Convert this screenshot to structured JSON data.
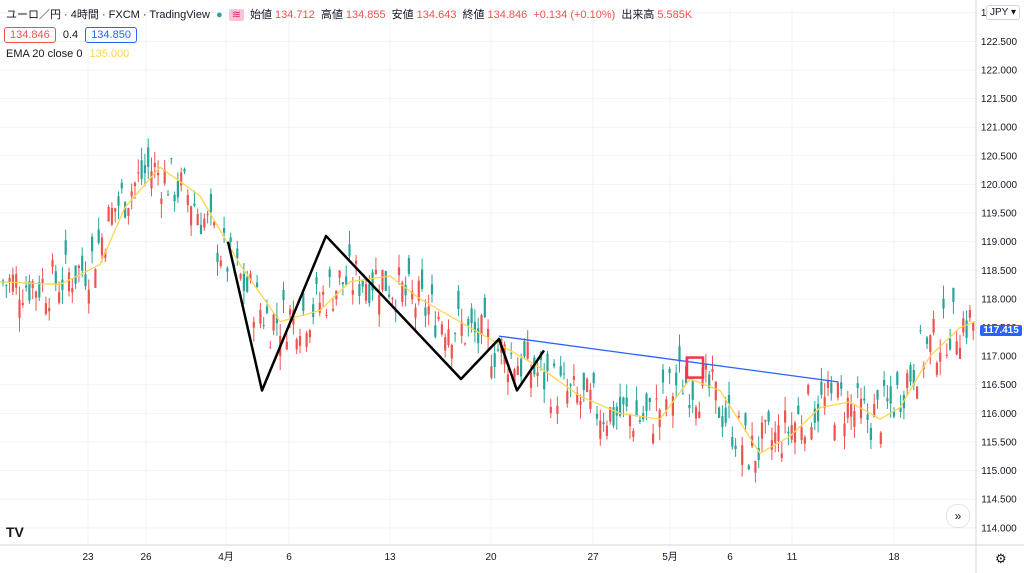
{
  "header": {
    "symbol": "ユーロ／円 · 4時間 · FXCM · TradingView",
    "open_label": "始値",
    "open": "134.712",
    "high_label": "高値",
    "high": "134.855",
    "low_label": "安値",
    "low": "134.643",
    "close_label": "終値",
    "close": "134.846",
    "change": "+0.134 (+0.10%)",
    "volume_label": "出来高",
    "volume": "5.585K",
    "bid": "134.846",
    "spread": "0.4",
    "ask": "134.850",
    "ema_label": "EMA 20 close 0",
    "ema_value": "135.000"
  },
  "axis": {
    "currency": "JPY",
    "last_price": "117.415"
  },
  "colors": {
    "up": "#26a69a",
    "down": "#ef5350",
    "ema": "#ffd54f",
    "trendline": "#2962ff",
    "highlight": "#f23645",
    "pattern": "#000000"
  },
  "chart_data": {
    "type": "candlestick",
    "ylim": [
      113.7,
      123.1
    ],
    "y_ticks": [
      "123.000",
      "122.500",
      "122.000",
      "121.500",
      "121.000",
      "120.500",
      "120.000",
      "119.500",
      "119.000",
      "118.500",
      "118.000",
      "117.500",
      "117.000",
      "116.500",
      "116.000",
      "115.500",
      "115.000",
      "114.500",
      "114.000"
    ],
    "x_ticks": [
      "23",
      "26",
      "4月",
      "6",
      "13",
      "20",
      "27",
      "5月",
      "6",
      "11",
      "18"
    ],
    "series": [
      {
        "name": "EMA 20 close 0",
        "type": "line",
        "values": [
          {
            "x": 0,
            "y": 118.3
          },
          {
            "x": 60,
            "y": 118.25
          },
          {
            "x": 100,
            "y": 118.6
          },
          {
            "x": 125,
            "y": 119.6
          },
          {
            "x": 160,
            "y": 120.3
          },
          {
            "x": 200,
            "y": 119.8
          },
          {
            "x": 240,
            "y": 118.6
          },
          {
            "x": 280,
            "y": 117.6
          },
          {
            "x": 320,
            "y": 117.8
          },
          {
            "x": 350,
            "y": 118.3
          },
          {
            "x": 390,
            "y": 118.4
          },
          {
            "x": 420,
            "y": 118.0
          },
          {
            "x": 460,
            "y": 117.6
          },
          {
            "x": 500,
            "y": 117.2
          },
          {
            "x": 540,
            "y": 116.8
          },
          {
            "x": 580,
            "y": 116.3
          },
          {
            "x": 620,
            "y": 116.0
          },
          {
            "x": 660,
            "y": 115.9
          },
          {
            "x": 690,
            "y": 116.6
          },
          {
            "x": 720,
            "y": 116.4
          },
          {
            "x": 760,
            "y": 115.3
          },
          {
            "x": 790,
            "y": 115.6
          },
          {
            "x": 820,
            "y": 116.1
          },
          {
            "x": 850,
            "y": 116.2
          },
          {
            "x": 880,
            "y": 115.9
          },
          {
            "x": 900,
            "y": 116.1
          },
          {
            "x": 930,
            "y": 117.0
          },
          {
            "x": 960,
            "y": 117.5
          },
          {
            "x": 975,
            "y": 117.6
          }
        ]
      }
    ],
    "annotations": {
      "pattern_zigzag": [
        {
          "x": 228,
          "y": 119.0
        },
        {
          "x": 262,
          "y": 116.4
        },
        {
          "x": 326,
          "y": 119.1
        },
        {
          "x": 461,
          "y": 116.6
        },
        {
          "x": 499,
          "y": 117.3
        },
        {
          "x": 517,
          "y": 116.4
        },
        {
          "x": 544,
          "y": 117.1
        }
      ],
      "trendline": [
        {
          "x": 499,
          "y": 117.35
        },
        {
          "x": 838,
          "y": 116.55
        }
      ],
      "highlight_box": {
        "x": 695,
        "y": 116.8
      }
    }
  }
}
